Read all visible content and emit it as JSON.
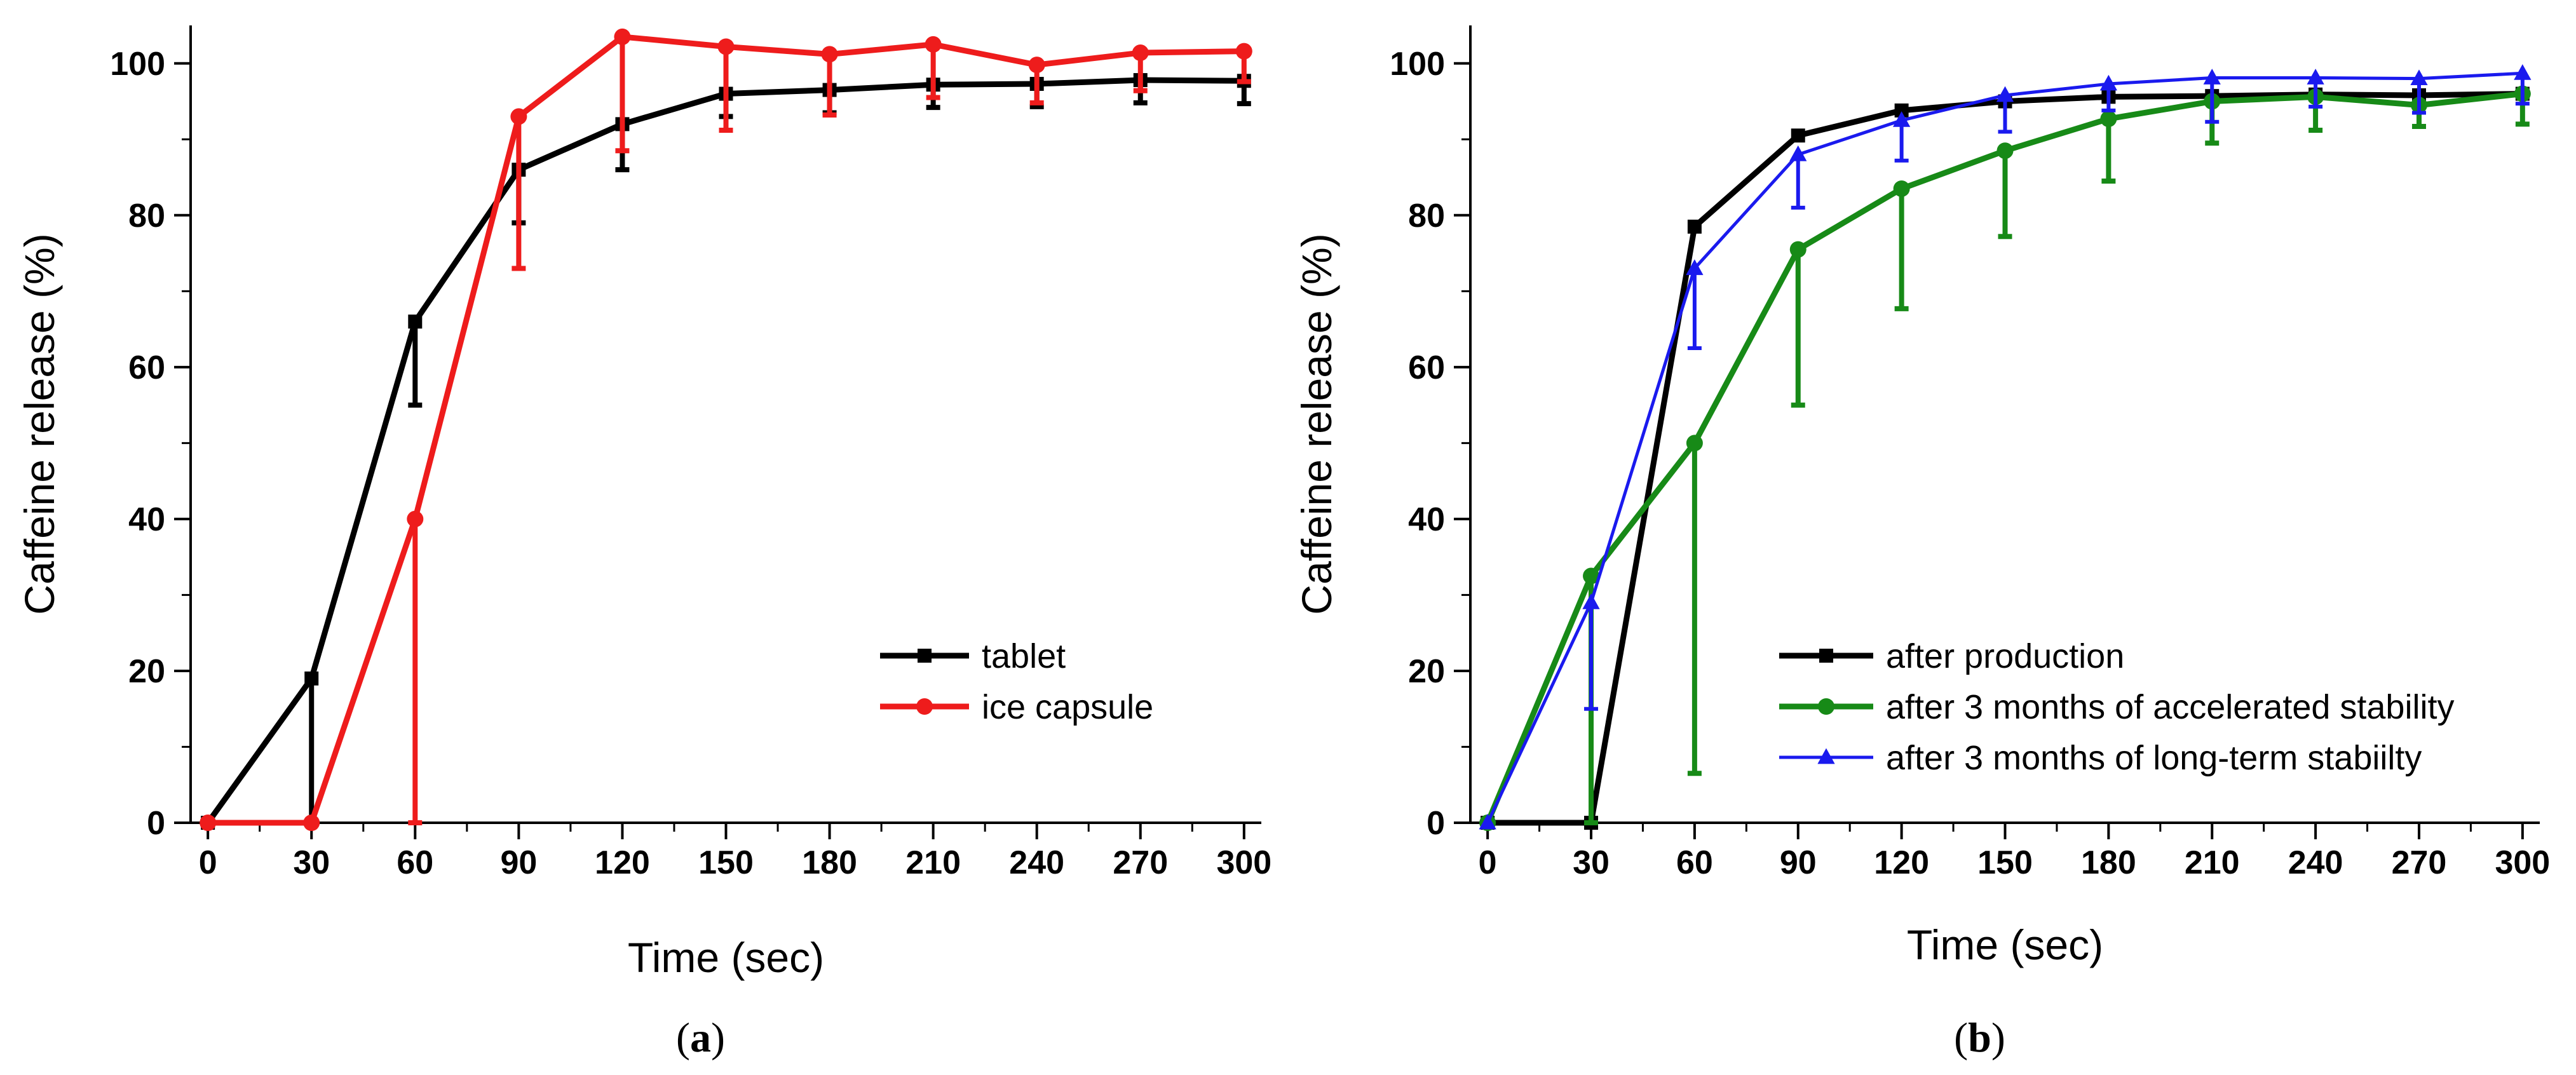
{
  "chart_data": [
    {
      "type": "line",
      "id": "a",
      "panel_label": "a",
      "xlabel": "Time (sec)",
      "ylabel": "Caffeine release (%)",
      "xlim": [
        -5,
        305
      ],
      "ylim": [
        0,
        105
      ],
      "xticks": [
        0,
        30,
        60,
        90,
        120,
        150,
        180,
        210,
        240,
        270,
        300
      ],
      "xtick_labels": [
        "0",
        "30",
        "60",
        "90",
        "120",
        "150",
        "180",
        "210",
        "240",
        "270",
        "300"
      ],
      "yticks": [
        0,
        20,
        40,
        60,
        80,
        100
      ],
      "ytick_labels": [
        "0",
        "20",
        "40",
        "60",
        "80",
        "100"
      ],
      "legend_position": "center-right",
      "series": [
        {
          "name": "tablet",
          "color": "#000000",
          "marker": "square",
          "x": [
            0,
            30,
            60,
            90,
            120,
            150,
            180,
            210,
            240,
            270,
            300
          ],
          "y": [
            0,
            19,
            66,
            86,
            92,
            96,
            96.5,
            97.2,
            97.3,
            97.8,
            97.7
          ],
          "err_low": [
            0,
            19,
            11,
            7,
            6,
            3,
            3,
            3,
            3,
            3,
            3
          ],
          "err_high": [
            0,
            0,
            0,
            0,
            0,
            0,
            0,
            0,
            0,
            0,
            0
          ]
        },
        {
          "name": "ice capsule",
          "color": "#ee1c1c",
          "marker": "circle",
          "x": [
            0,
            30,
            60,
            90,
            120,
            150,
            180,
            210,
            240,
            270,
            300
          ],
          "y": [
            0,
            0,
            40,
            93,
            103.5,
            102.2,
            101.2,
            102.5,
            99.8,
            101.4,
            101.6
          ],
          "err_low": [
            0,
            0,
            40,
            20,
            15,
            11,
            8,
            7,
            5,
            5,
            4
          ],
          "err_high": [
            0,
            0,
            0,
            0,
            0,
            0,
            0,
            0,
            0,
            0,
            0
          ]
        }
      ]
    },
    {
      "type": "line",
      "id": "b",
      "panel_label": "b",
      "xlabel": "Time (sec)",
      "ylabel": "Caffeine release (%)",
      "xlim": [
        -5,
        305
      ],
      "ylim": [
        0,
        105
      ],
      "xticks": [
        0,
        30,
        60,
        90,
        120,
        150,
        180,
        210,
        240,
        270,
        300
      ],
      "xtick_labels": [
        "0",
        "30",
        "60",
        "90",
        "120",
        "150",
        "180",
        "210",
        "240",
        "270",
        "300"
      ],
      "yticks": [
        0,
        20,
        40,
        60,
        80,
        100
      ],
      "ytick_labels": [
        "0",
        "20",
        "40",
        "60",
        "80",
        "100"
      ],
      "legend_position": "center-right",
      "series": [
        {
          "name": "after production",
          "color": "#000000",
          "marker": "square",
          "x": [
            0,
            30,
            60,
            90,
            120,
            150,
            180,
            210,
            240,
            270,
            300
          ],
          "y": [
            0,
            0,
            78.5,
            90.5,
            93.8,
            95,
            95.6,
            95.7,
            95.9,
            95.8,
            96
          ],
          "err_low": [
            0,
            0,
            0,
            0,
            0,
            0,
            0,
            0,
            0,
            0,
            0
          ],
          "err_high": [
            0,
            0,
            0,
            0,
            0,
            0,
            0,
            0,
            0,
            0,
            0
          ]
        },
        {
          "name": "after 3 months of accelerated stability",
          "color": "#178a17",
          "marker": "circle",
          "x": [
            0,
            30,
            60,
            90,
            120,
            150,
            180,
            210,
            240,
            270,
            300
          ],
          "y": [
            0,
            32.5,
            50,
            75.5,
            83.5,
            88.5,
            92.7,
            95,
            95.6,
            94.5,
            96
          ],
          "err_low": [
            0,
            32.5,
            43.5,
            20.5,
            15.8,
            11.3,
            8.2,
            5.5,
            4.4,
            2.8,
            4
          ],
          "err_high": [
            0,
            0,
            0,
            0,
            0,
            0,
            0,
            0,
            0,
            0,
            0
          ]
        },
        {
          "name": "after 3 months of long-term stabiilty",
          "color": "#1a1aee",
          "marker": "triangle",
          "x": [
            0,
            30,
            60,
            90,
            120,
            150,
            180,
            210,
            240,
            270,
            300
          ],
          "y": [
            0,
            29,
            73,
            88,
            92.5,
            95.8,
            97.3,
            98.1,
            98.1,
            98,
            98.7
          ],
          "err_low": [
            0,
            14,
            10.5,
            7,
            5.3,
            4.8,
            3.5,
            5.8,
            3.8,
            4.5,
            4
          ],
          "err_high": [
            0,
            0,
            0,
            0,
            0,
            0,
            0,
            0,
            0,
            0,
            0
          ]
        }
      ]
    }
  ]
}
